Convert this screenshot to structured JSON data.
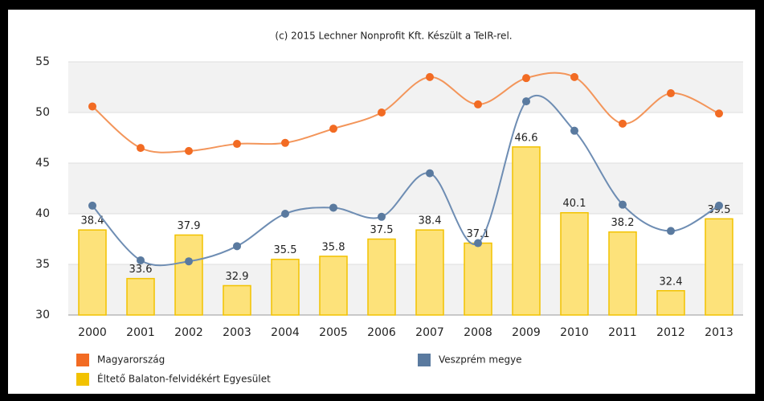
{
  "chart_data": {
    "type": "bar",
    "title": "(c) 2015 Lechner Nonprofit Kft. Készült a TeIR-rel.",
    "categories": [
      "2000",
      "2001",
      "2002",
      "2003",
      "2004",
      "2005",
      "2006",
      "2007",
      "2008",
      "2009",
      "2010",
      "2011",
      "2012",
      "2013"
    ],
    "series": [
      {
        "name": "Magyarország",
        "type": "line",
        "color": "#f26b23",
        "line_color": "#f3955a",
        "values": [
          50.6,
          46.5,
          46.2,
          46.9,
          47.0,
          48.4,
          50.0,
          53.5,
          50.8,
          53.4,
          53.5,
          48.9,
          51.9,
          49.9
        ]
      },
      {
        "name": "Veszprém megye",
        "type": "line",
        "color": "#5a7a9f",
        "line_color": "#6e8db3",
        "values": [
          40.8,
          35.4,
          35.3,
          36.8,
          40.0,
          40.6,
          39.7,
          44.0,
          37.1,
          51.1,
          48.2,
          40.9,
          38.3,
          40.8
        ]
      },
      {
        "name": "Éltető Balaton-felvidékért Egyesület",
        "type": "bar",
        "color": "#fde27a",
        "border_color": "#f2c200",
        "values": [
          38.4,
          33.6,
          37.9,
          32.9,
          35.5,
          35.8,
          37.5,
          38.4,
          37.1,
          46.6,
          40.1,
          38.2,
          32.4,
          39.5
        ]
      }
    ],
    "ylim": [
      30,
      55
    ],
    "yticks": [
      30,
      35,
      40,
      45,
      50,
      55
    ],
    "grid": true
  }
}
